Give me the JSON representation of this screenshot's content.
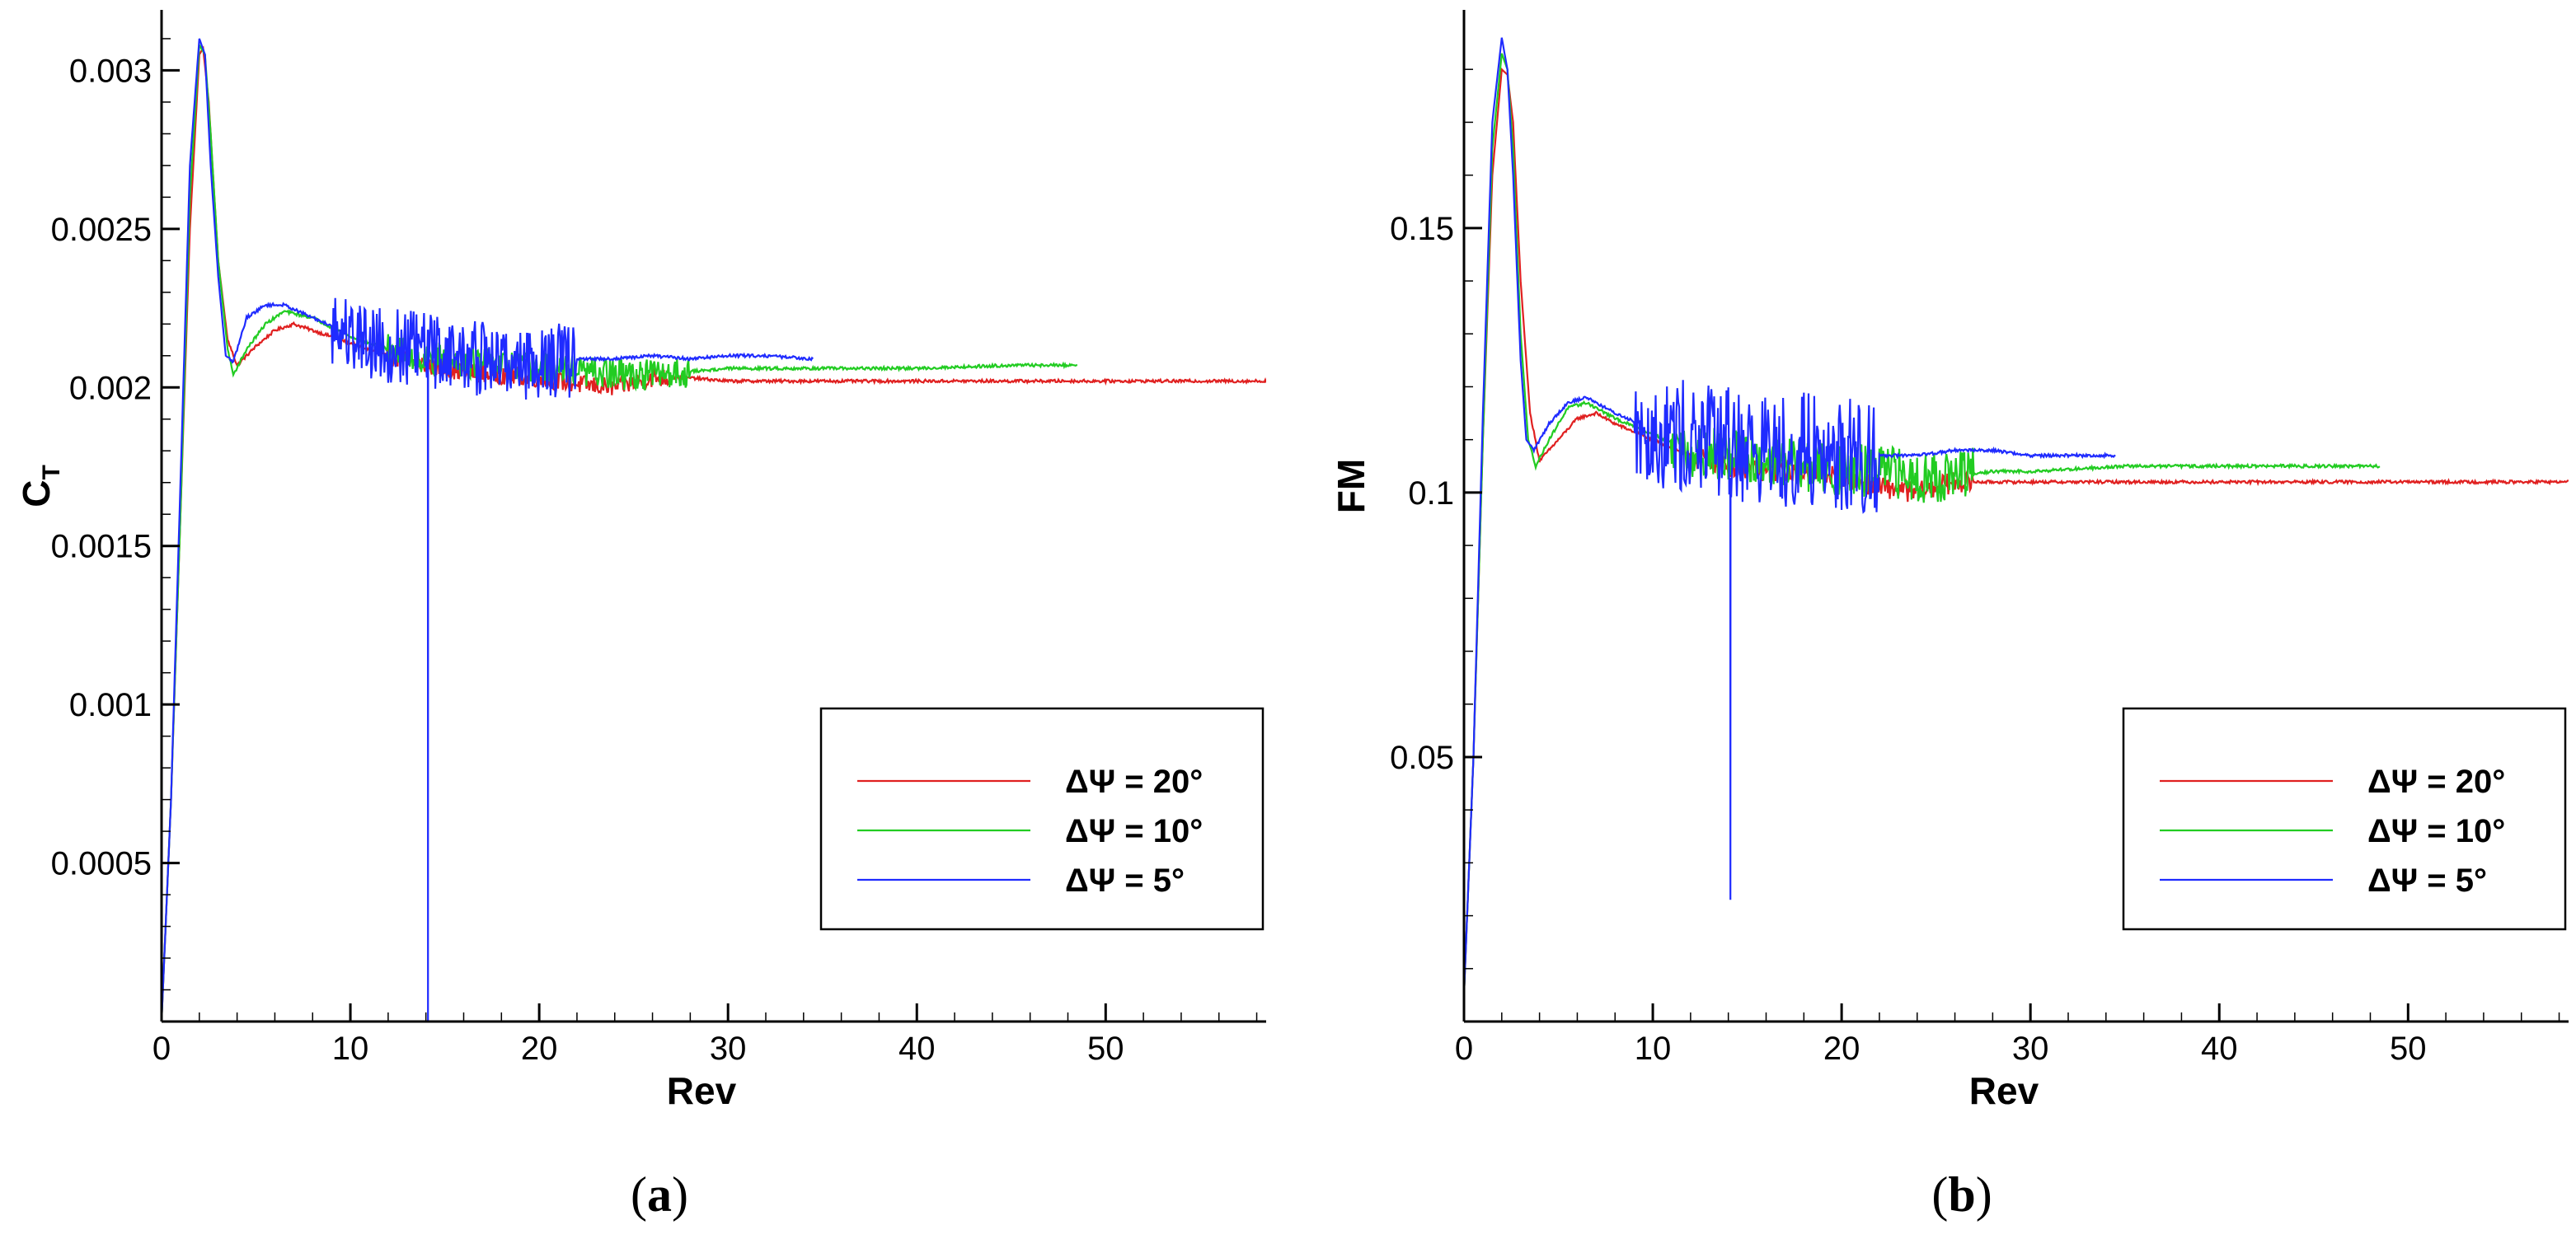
{
  "chart_data": [
    {
      "type": "line",
      "panel": "a",
      "panel_label": "a",
      "xlabel": "Rev",
      "ylabel": "C",
      "ylabel_sub": "T",
      "xlim": [
        0,
        58.5
      ],
      "ylim": [
        0,
        0.00317
      ],
      "xticks": [
        0,
        10,
        20,
        30,
        40,
        50
      ],
      "xtick_labels": [
        "0",
        "10",
        "20",
        "30",
        "40",
        "50"
      ],
      "yticks": [
        0.0005,
        0.001,
        0.0015,
        0.002,
        0.0025,
        0.003
      ],
      "ytick_labels": [
        "0.0005",
        "0.001",
        "0.0015",
        "0.002",
        "0.0025",
        "0.003"
      ],
      "legend_position": "lower-right",
      "series": [
        {
          "name": "ΔΨ = 20°",
          "color": "#e02020",
          "x": [
            0,
            0.5,
            1.0,
            1.5,
            2.0,
            2.2,
            2.5,
            3.0,
            3.5,
            4.0,
            5.0,
            6.0,
            7.0,
            8.0,
            10,
            12,
            14,
            16,
            18,
            20,
            22,
            24,
            26,
            28,
            30,
            35,
            40,
            45,
            50,
            55,
            58.5
          ],
          "y": [
            0,
            0.0007,
            0.0016,
            0.0025,
            0.00305,
            0.00307,
            0.0029,
            0.0024,
            0.00215,
            0.00207,
            0.00213,
            0.00218,
            0.0022,
            0.00218,
            0.00214,
            0.0021,
            0.00207,
            0.00205,
            0.00204,
            0.00203,
            0.00201,
            0.002,
            0.00203,
            0.00203,
            0.00202,
            0.00202,
            0.00202,
            0.00202,
            0.00202,
            0.00202,
            0.00202
          ],
          "noise_start": 12,
          "noise_end": 27,
          "noise_amp": 3e-05
        },
        {
          "name": "ΔΨ = 10°",
          "color": "#22cc22",
          "x": [
            0,
            0.5,
            1.0,
            1.5,
            2.0,
            2.3,
            2.6,
            3.0,
            3.5,
            3.8,
            4.5,
            5.5,
            6.5,
            8.0,
            10,
            12,
            14,
            16,
            18,
            20,
            22,
            24,
            26,
            28,
            30,
            35,
            40,
            45,
            48.5
          ],
          "y": [
            0,
            0.0007,
            0.0016,
            0.0026,
            0.00308,
            0.00305,
            0.0028,
            0.0024,
            0.00212,
            0.00204,
            0.00212,
            0.0022,
            0.00224,
            0.00222,
            0.00216,
            0.00212,
            0.00209,
            0.00208,
            0.00207,
            0.00206,
            0.00205,
            0.00204,
            0.00204,
            0.00205,
            0.00206,
            0.00206,
            0.00206,
            0.00207,
            0.00207
          ],
          "noise_start": 12,
          "noise_end": 28,
          "noise_amp": 5e-05
        },
        {
          "name": "ΔΨ = 5°",
          "color": "#1f2bff",
          "x": [
            0,
            0.5,
            1.0,
            1.5,
            2.0,
            2.3,
            2.6,
            3.0,
            3.4,
            3.8,
            4.5,
            5.5,
            6.5,
            8.0,
            10,
            12,
            14,
            16,
            18,
            20,
            22,
            24,
            26,
            28,
            30,
            32,
            34.5
          ],
          "y": [
            0,
            0.0007,
            0.0017,
            0.0027,
            0.0031,
            0.00305,
            0.0027,
            0.00235,
            0.0021,
            0.00208,
            0.00222,
            0.00226,
            0.00226,
            0.00222,
            0.00217,
            0.00213,
            0.00212,
            0.0021,
            0.00208,
            0.00208,
            0.00209,
            0.00209,
            0.0021,
            0.00209,
            0.0021,
            0.0021,
            0.00209
          ],
          "noise_start": 9,
          "noise_end": 22,
          "noise_amp": 0.00012,
          "spike_x": 14.1,
          "spike_y": 0
        }
      ]
    },
    {
      "type": "line",
      "panel": "b",
      "panel_label": "b",
      "xlabel": "Rev",
      "ylabel": "FM",
      "ylabel_sub": "",
      "xlim": [
        0,
        58.5
      ],
      "ylim": [
        0,
        0.19
      ],
      "xticks": [
        0,
        10,
        20,
        30,
        40,
        50
      ],
      "xtick_labels": [
        "0",
        "10",
        "20",
        "30",
        "40",
        "50"
      ],
      "yticks": [
        0.05,
        0.1,
        0.15
      ],
      "ytick_labels": [
        "0.05",
        "0.1",
        "0.15"
      ],
      "legend_position": "lower-right",
      "series": [
        {
          "name": "ΔΨ = 20°",
          "color": "#e02020",
          "x": [
            0,
            0.5,
            1.0,
            1.5,
            2.0,
            2.3,
            2.6,
            3.0,
            3.5,
            4.0,
            5.0,
            6.0,
            7.0,
            8.0,
            10,
            12,
            14,
            16,
            18,
            20,
            22,
            24,
            26,
            28,
            30,
            35,
            40,
            45,
            50,
            55,
            58.5
          ],
          "y": [
            0.005,
            0.05,
            0.11,
            0.16,
            0.18,
            0.179,
            0.17,
            0.14,
            0.115,
            0.106,
            0.11,
            0.114,
            0.115,
            0.113,
            0.11,
            0.107,
            0.105,
            0.104,
            0.104,
            0.103,
            0.101,
            0.1,
            0.102,
            0.102,
            0.102,
            0.102,
            0.102,
            0.102,
            0.102,
            0.102,
            0.102
          ],
          "noise_start": 12,
          "noise_end": 27,
          "noise_amp": 0.002
        },
        {
          "name": "ΔΨ = 10°",
          "color": "#22cc22",
          "x": [
            0,
            0.5,
            1.0,
            1.5,
            2.0,
            2.3,
            2.6,
            3.0,
            3.4,
            3.8,
            4.5,
            5.5,
            6.5,
            8.0,
            10,
            12,
            14,
            16,
            18,
            20,
            22,
            24,
            26,
            28,
            30,
            35,
            40,
            45,
            48.5
          ],
          "y": [
            0.005,
            0.05,
            0.11,
            0.165,
            0.183,
            0.18,
            0.165,
            0.13,
            0.11,
            0.105,
            0.11,
            0.116,
            0.117,
            0.114,
            0.111,
            0.108,
            0.107,
            0.106,
            0.105,
            0.104,
            0.104,
            0.103,
            0.103,
            0.104,
            0.104,
            0.105,
            0.105,
            0.105,
            0.105
          ],
          "noise_start": 11,
          "noise_end": 27,
          "noise_amp": 0.005
        },
        {
          "name": "ΔΨ = 5°",
          "color": "#1f2bff",
          "x": [
            0,
            0.5,
            1.0,
            1.5,
            2.0,
            2.3,
            2.6,
            3.0,
            3.3,
            3.7,
            4.5,
            5.5,
            6.5,
            8.0,
            10,
            12,
            14,
            16,
            18,
            20,
            22,
            24,
            26,
            28,
            30,
            32,
            34.5
          ],
          "y": [
            0.005,
            0.05,
            0.115,
            0.17,
            0.186,
            0.18,
            0.16,
            0.125,
            0.11,
            0.108,
            0.113,
            0.117,
            0.118,
            0.115,
            0.112,
            0.11,
            0.109,
            0.108,
            0.108,
            0.107,
            0.107,
            0.107,
            0.108,
            0.108,
            0.107,
            0.107,
            0.107
          ],
          "noise_start": 9,
          "noise_end": 22,
          "noise_amp": 0.011,
          "spike_x": 14.1,
          "spike_y": 0.023
        }
      ]
    }
  ]
}
